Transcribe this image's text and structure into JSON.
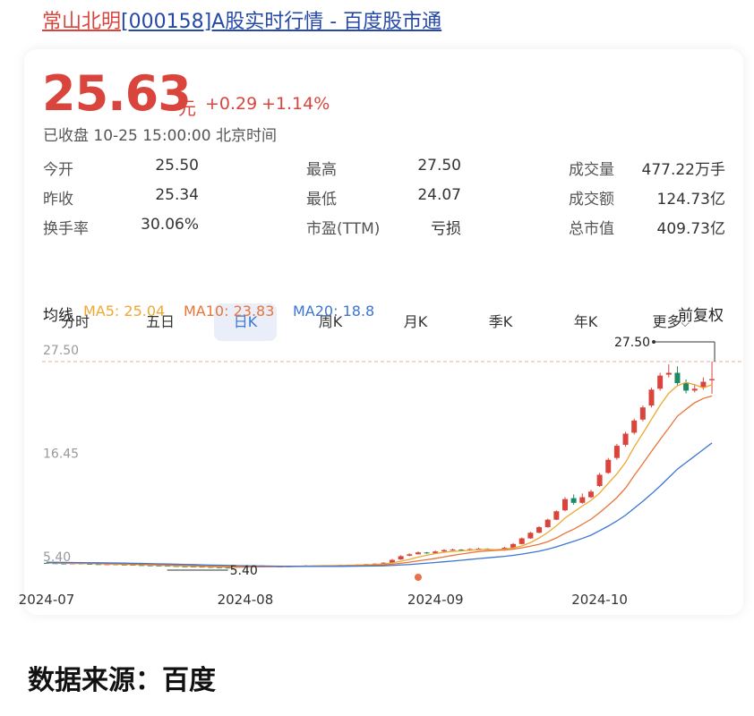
{
  "header": {
    "title_name": "常山北明",
    "title_rest": "[000158]A股实时行情 - 百度股市通"
  },
  "quote": {
    "price": "25.63",
    "unit": "元",
    "change": "+0.29",
    "change_pct": "+1.14%",
    "status": "已收盘 10-25 15:00:00 北京时间"
  },
  "stats": [
    [
      {
        "label": "今开",
        "value": "25.50"
      },
      {
        "label": "最高",
        "value": "27.50"
      },
      {
        "label": "成交量",
        "value": "477.22万手"
      }
    ],
    [
      {
        "label": "昨收",
        "value": "25.34"
      },
      {
        "label": "最低",
        "value": "24.07"
      },
      {
        "label": "成交额",
        "value": "124.73亿"
      }
    ],
    [
      {
        "label": "换手率",
        "value": "30.06%"
      },
      {
        "label": "市盈(TTM)",
        "value": "亏损"
      },
      {
        "label": "总市值",
        "value": "409.73亿"
      }
    ]
  ],
  "tabs": [
    "分时",
    "五日",
    "日K",
    "周K",
    "月K",
    "季K",
    "年K",
    "更多"
  ],
  "ma_bar": {
    "title": "均线",
    "adjust": "前复权"
  },
  "chart_data": {
    "type": "candlestick",
    "categories": [
      "2024-07",
      null,
      null,
      null,
      null,
      null,
      null,
      null,
      null,
      null,
      null,
      null,
      null,
      null,
      null,
      null,
      null,
      null,
      null,
      null,
      null,
      null,
      null,
      "2024-08",
      null,
      null,
      null,
      null,
      null,
      null,
      null,
      null,
      null,
      null,
      null,
      null,
      null,
      null,
      null,
      null,
      null,
      null,
      null,
      null,
      null,
      "2024-09",
      null,
      null,
      null,
      null,
      null,
      null,
      null,
      null,
      null,
      null,
      null,
      null,
      null,
      null,
      null,
      null,
      null,
      null,
      "2024-10",
      null,
      null,
      null,
      null,
      null,
      null,
      null,
      null,
      null,
      null,
      null,
      null,
      null
    ],
    "open": [
      5.98,
      5.95,
      5.92,
      5.9,
      5.93,
      5.88,
      5.85,
      5.82,
      5.84,
      5.8,
      5.78,
      5.75,
      5.72,
      5.7,
      5.68,
      5.65,
      5.62,
      5.6,
      5.58,
      5.55,
      5.52,
      5.48,
      5.45,
      5.55,
      5.62,
      5.7,
      5.65,
      5.6,
      5.58,
      5.62,
      5.66,
      5.7,
      5.68,
      5.65,
      5.7,
      5.75,
      5.78,
      5.8,
      5.85,
      5.9,
      6.0,
      6.35,
      6.75,
      6.9,
      7.1,
      7.0,
      7.2,
      7.35,
      7.4,
      7.3,
      7.45,
      7.5,
      7.4,
      7.35,
      7.6,
      8.0,
      8.6,
      9.2,
      9.8,
      10.6,
      11.6,
      12.9,
      12.4,
      13.0,
      14.2,
      15.6,
      17.2,
      18.6,
      19.9,
      21.3,
      22.8,
      24.6,
      26.1,
      26.3,
      25.2,
      24.4,
      24.7,
      25.5
    ],
    "high": [
      6.02,
      5.98,
      5.95,
      5.96,
      5.95,
      5.9,
      5.87,
      5.88,
      5.86,
      5.82,
      5.8,
      5.78,
      5.75,
      5.73,
      5.7,
      5.68,
      5.65,
      5.63,
      5.6,
      5.57,
      5.55,
      5.5,
      5.58,
      5.66,
      5.74,
      5.72,
      5.67,
      5.63,
      5.65,
      5.69,
      5.73,
      5.72,
      5.7,
      5.72,
      5.78,
      5.8,
      5.83,
      5.88,
      5.93,
      6.05,
      6.4,
      6.8,
      7.0,
      7.2,
      7.15,
      7.3,
      7.45,
      7.5,
      7.45,
      7.55,
      7.6,
      7.55,
      7.45,
      7.7,
      8.1,
      8.7,
      9.3,
      9.9,
      10.7,
      11.6,
      13.0,
      13.3,
      13.4,
      13.8,
      15.6,
      17.2,
      18.7,
      20.0,
      21.4,
      22.8,
      24.7,
      26.3,
      27.2,
      27.0,
      25.6,
      25.1,
      25.8,
      27.5
    ],
    "low": [
      5.92,
      5.89,
      5.87,
      5.88,
      5.85,
      5.82,
      5.8,
      5.8,
      5.78,
      5.76,
      5.73,
      5.7,
      5.68,
      5.66,
      5.63,
      5.6,
      5.58,
      5.56,
      5.53,
      5.5,
      5.46,
      5.4,
      5.43,
      5.53,
      5.6,
      5.63,
      5.58,
      5.56,
      5.56,
      5.6,
      5.64,
      5.66,
      5.63,
      5.63,
      5.68,
      5.73,
      5.76,
      5.78,
      5.83,
      5.88,
      5.98,
      6.3,
      6.7,
      6.88,
      6.95,
      6.95,
      7.15,
      7.3,
      7.25,
      7.25,
      7.4,
      7.35,
      7.3,
      7.3,
      7.55,
      7.95,
      8.55,
      9.15,
      9.75,
      10.55,
      11.5,
      12.2,
      12.3,
      12.9,
      14.1,
      15.5,
      17.0,
      18.4,
      19.7,
      21.1,
      22.6,
      24.4,
      25.8,
      24.9,
      24.1,
      24.2,
      24.5,
      24.07
    ],
    "close": [
      5.95,
      5.92,
      5.9,
      5.93,
      5.88,
      5.85,
      5.82,
      5.84,
      5.8,
      5.78,
      5.75,
      5.72,
      5.7,
      5.68,
      5.65,
      5.62,
      5.6,
      5.58,
      5.55,
      5.52,
      5.48,
      5.45,
      5.55,
      5.62,
      5.7,
      5.65,
      5.6,
      5.58,
      5.62,
      5.66,
      5.7,
      5.68,
      5.65,
      5.7,
      5.75,
      5.78,
      5.8,
      5.85,
      5.9,
      6.0,
      6.3,
      6.7,
      6.9,
      7.1,
      7.0,
      7.2,
      7.35,
      7.4,
      7.3,
      7.45,
      7.5,
      7.4,
      7.35,
      7.6,
      8.0,
      8.6,
      9.2,
      9.8,
      10.6,
      11.5,
      12.8,
      12.4,
      13.0,
      13.6,
      15.4,
      17.0,
      18.5,
      19.8,
      21.2,
      22.6,
      24.5,
      26.0,
      26.3,
      25.2,
      24.4,
      24.6,
      25.34,
      25.63
    ],
    "up_color": "#d9453d",
    "down_color": "#1e8a64",
    "series": [
      {
        "name": "MA5: 25.04",
        "color": "#f0a830",
        "values": [
          5.98,
          5.96,
          5.94,
          5.93,
          5.92,
          5.9,
          5.88,
          5.86,
          5.84,
          5.82,
          5.8,
          5.78,
          5.75,
          5.72,
          5.7,
          5.67,
          5.65,
          5.62,
          5.6,
          5.57,
          5.54,
          5.52,
          5.51,
          5.52,
          5.56,
          5.59,
          5.62,
          5.63,
          5.63,
          5.63,
          5.64,
          5.66,
          5.68,
          5.68,
          5.7,
          5.72,
          5.74,
          5.77,
          5.81,
          5.87,
          5.97,
          6.15,
          6.36,
          6.6,
          6.8,
          6.98,
          7.11,
          7.21,
          7.25,
          7.34,
          7.4,
          7.42,
          7.4,
          7.46,
          7.58,
          7.79,
          8.15,
          8.64,
          9.24,
          9.94,
          10.78,
          11.42,
          12.06,
          12.66,
          13.44,
          14.48,
          15.5,
          16.72,
          18.38,
          19.82,
          21.32,
          22.82,
          24.12,
          24.92,
          25.28,
          25.02,
          24.69,
          25.04
        ]
      },
      {
        "name": "MA10: 23.83",
        "color": "#e8743a",
        "values": [
          6.0,
          5.99,
          5.98,
          5.97,
          5.96,
          5.95,
          5.93,
          5.91,
          5.89,
          5.87,
          5.85,
          5.83,
          5.81,
          5.79,
          5.76,
          5.74,
          5.71,
          5.68,
          5.66,
          5.63,
          5.6,
          5.58,
          5.57,
          5.56,
          5.56,
          5.56,
          5.57,
          5.57,
          5.58,
          5.59,
          5.61,
          5.63,
          5.64,
          5.65,
          5.66,
          5.67,
          5.69,
          5.71,
          5.73,
          5.77,
          5.84,
          5.94,
          6.06,
          6.2,
          6.32,
          6.46,
          6.62,
          6.78,
          6.93,
          7.06,
          7.2,
          7.26,
          7.31,
          7.36,
          7.45,
          7.59,
          7.77,
          7.97,
          8.25,
          8.65,
          9.16,
          9.58,
          10.1,
          10.65,
          11.36,
          12.13,
          12.96,
          13.98,
          15.31,
          16.59,
          17.9,
          19.16,
          20.4,
          21.66,
          22.4,
          23.1,
          23.56,
          23.83
        ]
      },
      {
        "name": "MA20: 18.8",
        "color": "#3c76d4",
        "values": [
          6.05,
          6.04,
          6.03,
          6.02,
          6.01,
          6.0,
          5.99,
          5.98,
          5.97,
          5.96,
          5.94,
          5.92,
          5.9,
          5.88,
          5.86,
          5.84,
          5.82,
          5.8,
          5.77,
          5.75,
          5.73,
          5.71,
          5.69,
          5.67,
          5.66,
          5.65,
          5.64,
          5.63,
          5.62,
          5.62,
          5.61,
          5.61,
          5.61,
          5.61,
          5.61,
          5.62,
          5.63,
          5.64,
          5.65,
          5.67,
          5.71,
          5.76,
          5.81,
          5.88,
          5.95,
          6.02,
          6.1,
          6.18,
          6.26,
          6.35,
          6.44,
          6.52,
          6.6,
          6.68,
          6.79,
          6.92,
          7.07,
          7.23,
          7.44,
          7.7,
          8.0,
          8.28,
          8.6,
          8.94,
          9.42,
          9.92,
          10.46,
          11.08,
          11.82,
          12.56,
          13.36,
          14.2,
          15.1,
          16.0,
          16.7,
          17.4,
          18.1,
          18.8
        ]
      }
    ],
    "ylim": [
      5.4,
      27.5
    ],
    "yticks": [
      {
        "value": 27.5,
        "label": "27.50"
      },
      16.45,
      {
        "value": 5.4,
        "label": "5.40"
      }
    ],
    "annotations": [
      {
        "label": "27.50",
        "value": 27.5
      },
      {
        "label": "5.40",
        "value": 5.4
      }
    ]
  },
  "footer": "数据来源：百度"
}
